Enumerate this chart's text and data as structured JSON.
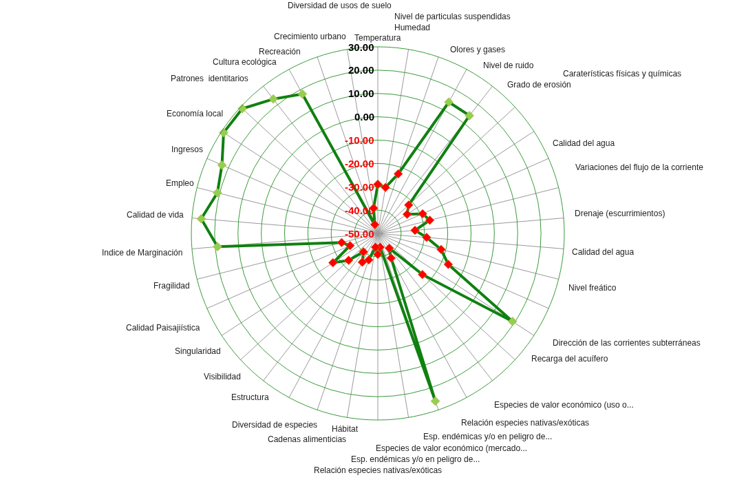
{
  "chart_data": {
    "type": "radar",
    "categories": [
      "Temperatura",
      "Humedad",
      "Nivel de particulas suspendidas",
      "Olores y gases",
      "Nivel de ruido",
      "Grado de erosión",
      "Caraterísticas físicas y químicas",
      "Calidad del agua",
      "Variaciones del flujo de la corriente",
      "Drenaje (escurrimientos)",
      "Calidad del agua",
      "Nivel freático",
      "Dirección de las corrientes subterráneas",
      "Recarga del acuífero",
      "Especies de valor económico (uso o...",
      "Relación especies nativas/exóticas",
      "Esp. endémicas y/o en peligro de...",
      "Especies de valor económico (mercado...",
      "Esp. endémicas y/o en peligro de...",
      "Relación especies nativas/exóticas",
      "Hábitat",
      "Cadenas alimenticias",
      "Diversidad de especies",
      "Estructura",
      "Visibilidad",
      "Singularidad",
      "Calidad Paisajiística",
      "Fragilidad",
      "Indice de Marginación",
      "Calidad de vida",
      "Empleo",
      "Ingresos",
      "Economía local",
      "Patrones  identitarios",
      "Cultura ecológica",
      "Recreación",
      "Crecimiento urbano",
      "Diversidad de usos de suelo"
    ],
    "series": [
      {
        "color": "#108010",
        "values": [
          -29,
          -30,
          -23,
          14,
          14,
          -32,
          -35,
          -29,
          -27,
          -34,
          -29,
          -22,
          -17,
          19,
          -24,
          -42,
          -38,
          26,
          -44,
          -41,
          -44,
          -38,
          -36,
          -40,
          -33,
          -27,
          -37,
          -34,
          19,
          26,
          21,
          23,
          29,
          29,
          23,
          18,
          -46,
          -39
        ],
        "colors": [
          "#ff0000",
          "#ff0000",
          "#ff0000",
          "#92d050",
          "#92d050",
          "#ff0000",
          "#ff0000",
          "#ff0000",
          "#ff0000",
          "#ff0000",
          "#ff0000",
          "#ff0000",
          "#ff0000",
          "#92d050",
          "#ff0000",
          "#ff0000",
          "#ff0000",
          "#92d050",
          "#ff0000",
          "#ff0000",
          "#ff0000",
          "#ff0000",
          "#ff0000",
          "#ff0000",
          "#ff0000",
          "#ff0000",
          "#ff0000",
          "#ff0000",
          "#92d050",
          "#92d050",
          "#92d050",
          "#92d050",
          "#92d050",
          "#92d050",
          "#92d050",
          "#92d050",
          "#ff0000",
          "#ff0000"
        ]
      }
    ],
    "ylim": [
      -50,
      30
    ],
    "yticks": [
      {
        "value": -50,
        "label": "-50.00"
      },
      {
        "value": -40,
        "label": "-40.00"
      },
      {
        "value": -30,
        "label": "-30.00"
      },
      {
        "value": -20,
        "label": "-20.00"
      },
      {
        "value": -10,
        "label": "-10.00"
      },
      {
        "value": 0,
        "label": "0.00"
      },
      {
        "value": 10,
        "label": "10.00"
      },
      {
        "value": 20,
        "label": "20.00"
      },
      {
        "value": 30,
        "label": "30.00"
      }
    ],
    "grid": true,
    "marker": "diamond",
    "line_style": "solid"
  }
}
